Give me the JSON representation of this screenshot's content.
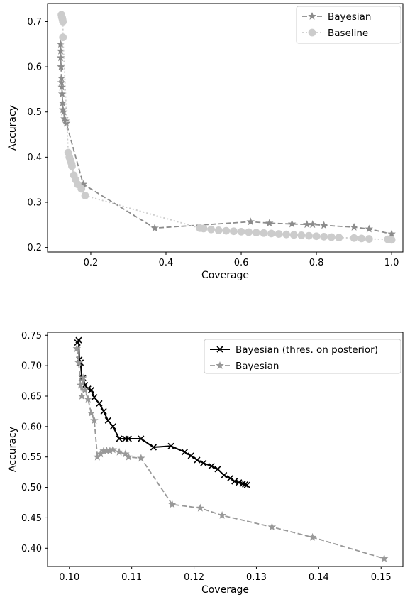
{
  "chart_data": [
    {
      "type": "line",
      "xlabel": "Coverage",
      "ylabel": "Accuracy",
      "xlim": [
        0.085,
        1.03
      ],
      "ylim": [
        0.19,
        0.74
      ],
      "xticks": [
        "0.2",
        "0.4",
        "0.6",
        "0.8",
        "1.0"
      ],
      "yticks": [
        "0.2",
        "0.3",
        "0.4",
        "0.5",
        "0.6",
        "0.7"
      ],
      "legend_position": "top-right",
      "series": [
        {
          "name": "Bayesian",
          "color": "#8c8c8c",
          "line_style": "dashed",
          "marker": "star",
          "x": [
            0.12,
            0.12,
            0.12,
            0.121,
            0.122,
            0.122,
            0.123,
            0.124,
            0.125,
            0.126,
            0.128,
            0.13,
            0.133,
            0.135,
            0.18,
            0.37,
            0.625,
            0.675,
            0.735,
            0.775,
            0.79,
            0.82,
            0.9,
            0.94,
            1.0
          ],
          "y": [
            0.65,
            0.635,
            0.62,
            0.6,
            0.575,
            0.565,
            0.555,
            0.54,
            0.52,
            0.505,
            0.5,
            0.485,
            0.48,
            0.475,
            0.34,
            0.243,
            0.257,
            0.254,
            0.252,
            0.251,
            0.251,
            0.249,
            0.245,
            0.241,
            0.23
          ]
        },
        {
          "name": "Baseline",
          "color": "#cccccc",
          "line_style": "dotted",
          "marker": "circle",
          "x": [
            0.122,
            0.123,
            0.124,
            0.125,
            0.126,
            0.126,
            0.14,
            0.143,
            0.145,
            0.147,
            0.149,
            0.15,
            0.155,
            0.16,
            0.165,
            0.175,
            0.185,
            0.49,
            0.5,
            0.52,
            0.54,
            0.56,
            0.58,
            0.6,
            0.62,
            0.64,
            0.66,
            0.68,
            0.7,
            0.72,
            0.74,
            0.76,
            0.78,
            0.8,
            0.82,
            0.84,
            0.86,
            0.9,
            0.92,
            0.94,
            0.99,
            1.0
          ],
          "y": [
            0.715,
            0.71,
            0.708,
            0.704,
            0.7,
            0.665,
            0.41,
            0.4,
            0.395,
            0.39,
            0.385,
            0.38,
            0.36,
            0.35,
            0.34,
            0.33,
            0.315,
            0.243,
            0.242,
            0.24,
            0.238,
            0.237,
            0.236,
            0.235,
            0.234,
            0.233,
            0.232,
            0.231,
            0.23,
            0.229,
            0.228,
            0.227,
            0.226,
            0.225,
            0.224,
            0.223,
            0.222,
            0.221,
            0.22,
            0.219,
            0.218,
            0.217
          ]
        }
      ]
    },
    {
      "type": "line",
      "xlabel": "Coverage",
      "ylabel": "Accuracy",
      "xlim": [
        0.0965,
        0.1535
      ],
      "ylim": [
        0.37,
        0.755
      ],
      "xticks": [
        "0.10",
        "0.11",
        "0.12",
        "0.13",
        "0.14",
        "0.15"
      ],
      "yticks": [
        "0.40",
        "0.45",
        "0.50",
        "0.55",
        "0.60",
        "0.65",
        "0.70",
        "0.75"
      ],
      "legend_position": "top-right",
      "series": [
        {
          "name": "Bayesian (thres. on posterior)",
          "color": "#000000",
          "line_style": "solid",
          "marker": "x",
          "x": [
            0.1013,
            0.1015,
            0.1016,
            0.1018,
            0.102,
            0.1022,
            0.1025,
            0.103,
            0.1035,
            0.104,
            0.1048,
            0.1055,
            0.1062,
            0.107,
            0.108,
            0.109,
            0.1095,
            0.1115,
            0.1135,
            0.1163,
            0.1185,
            0.1195,
            0.1205,
            0.1215,
            0.1228,
            0.1238,
            0.1248,
            0.1258,
            0.1265,
            0.1272,
            0.1278,
            0.1282,
            0.1285
          ],
          "y": [
            0.738,
            0.742,
            0.71,
            0.705,
            0.68,
            0.68,
            0.668,
            0.662,
            0.66,
            0.648,
            0.638,
            0.625,
            0.61,
            0.6,
            0.58,
            0.58,
            0.58,
            0.58,
            0.566,
            0.568,
            0.558,
            0.552,
            0.545,
            0.54,
            0.535,
            0.53,
            0.52,
            0.515,
            0.51,
            0.508,
            0.506,
            0.505,
            0.504
          ]
        },
        {
          "name": "Bayesian",
          "color": "#999999",
          "line_style": "dashed",
          "marker": "star",
          "x": [
            0.1012,
            0.1015,
            0.1018,
            0.102,
            0.1022,
            0.1025,
            0.103,
            0.1035,
            0.104,
            0.1045,
            0.105,
            0.1055,
            0.106,
            0.1065,
            0.107,
            0.108,
            0.109,
            0.1095,
            0.1115,
            0.1165,
            0.121,
            0.1245,
            0.1325,
            0.139,
            0.1505
          ],
          "y": [
            0.728,
            0.705,
            0.668,
            0.65,
            0.68,
            0.66,
            0.645,
            0.622,
            0.61,
            0.55,
            0.555,
            0.56,
            0.56,
            0.56,
            0.562,
            0.558,
            0.555,
            0.55,
            0.548,
            0.472,
            0.466,
            0.454,
            0.435,
            0.418,
            0.383
          ]
        }
      ]
    }
  ]
}
